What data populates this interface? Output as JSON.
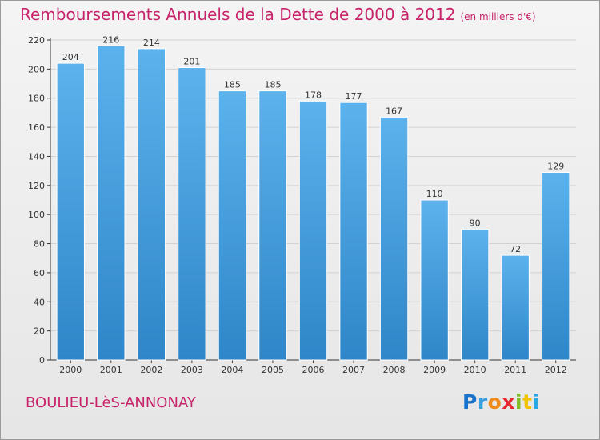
{
  "header": {
    "title": "Remboursements Annuels de la Dette de 2000 à 2012",
    "unit": "(en milliers d'€)"
  },
  "footer": {
    "location": "BOULIEU-LèS-ANNONAY",
    "brand_letters": [
      "P",
      "r",
      "o",
      "x",
      "i",
      "t",
      "i"
    ],
    "brand_colors": [
      "#1a73c9",
      "#3aa0e0",
      "#f08c1c",
      "#e8262e",
      "#7cbc26",
      "#f2c300",
      "#2aa7e0"
    ]
  },
  "chart_data": {
    "type": "bar",
    "title": "Remboursements Annuels de la Dette de 2000 à 2012",
    "categories": [
      "2000",
      "2001",
      "2002",
      "2003",
      "2004",
      "2005",
      "2006",
      "2007",
      "2008",
      "2009",
      "2010",
      "2011",
      "2012"
    ],
    "values": [
      204,
      216,
      214,
      201,
      185,
      185,
      178,
      177,
      167,
      110,
      90,
      72,
      129
    ],
    "ylim": [
      0,
      220
    ],
    "yticks": [
      0,
      20,
      40,
      60,
      80,
      100,
      120,
      140,
      160,
      180,
      200,
      220
    ],
    "grid": true,
    "bar_color": "#4aa3e2"
  }
}
